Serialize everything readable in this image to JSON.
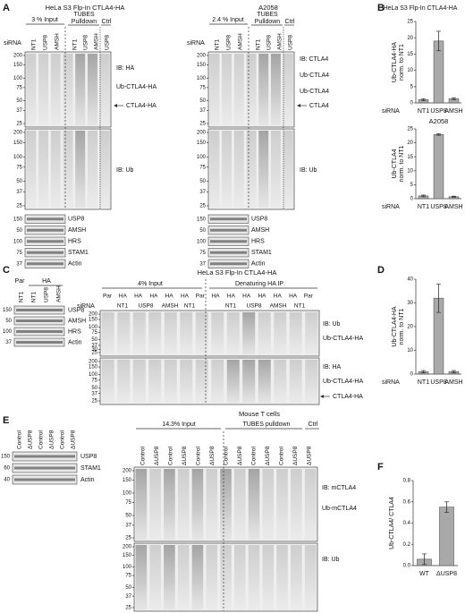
{
  "A": {
    "letter": "A",
    "left": {
      "title": "HeLa S3 Flp-In CTLA4-HA",
      "input": "3 % Input",
      "tubes": "TUBES",
      "pulldown": "Pulldown",
      "ctrl": "Ctrl",
      "sirna": "siRNA",
      "lanes": [
        "NT1",
        "USP8",
        "AMSH",
        "NT1",
        "USP8",
        "AMSH",
        "USP8"
      ],
      "mw_top": [
        200,
        150,
        100,
        75,
        50,
        37,
        25
      ],
      "mw_bottom": [
        200,
        150,
        100,
        75,
        50,
        37,
        25
      ],
      "labels": [
        "IB: HA",
        "Ub-CTLA4-HA",
        "CTLA4-HA",
        "IB: Ub"
      ],
      "small": [
        {
          "mw": 150,
          "name": "USP8"
        },
        {
          "mw": 50,
          "name": "AMSH"
        },
        {
          "mw": 100,
          "name": "HRS"
        },
        {
          "mw": 75,
          "name": "STAM1"
        },
        {
          "mw": 37,
          "name": "Actin"
        }
      ]
    },
    "right": {
      "title": "A2058",
      "input": "2.4 % Input",
      "tubes": "TUBES",
      "pulldown": "Pulldown",
      "ctrl": "Ctrl",
      "sirna": "siRNA",
      "lanes": [
        "NT1",
        "USP8",
        "AMSH",
        "NT1",
        "USP8",
        "AMSH",
        "USP8"
      ],
      "mw_top": [
        200,
        150,
        100,
        75,
        50,
        37,
        25
      ],
      "mw_bottom": [
        200,
        150,
        100,
        75,
        50,
        37,
        25
      ],
      "labels": [
        "IB: CTLA4",
        "Ub-CTLA4",
        "Ub-CTLA4",
        "CTLA4",
        "IB: Ub"
      ],
      "small": [
        {
          "mw": 150,
          "name": "USP8"
        },
        {
          "mw": 50,
          "name": "AMSH"
        },
        {
          "mw": 100,
          "name": "HRS"
        },
        {
          "mw": 75,
          "name": "STAM1"
        },
        {
          "mw": 37,
          "name": "Actin"
        }
      ]
    }
  },
  "B": {
    "letter": "B",
    "title": "HeLa S3 Flp-In CTLA4-HA",
    "charts": [
      {
        "type": "bar",
        "ylabel": [
          "Ub-CTLA4-HA",
          "norm. to NT1"
        ],
        "sirna": "siRNA",
        "categories": [
          "NT1",
          "USP8",
          "AMSH"
        ],
        "values": [
          1,
          19,
          1.3
        ],
        "errors": [
          0.3,
          3,
          0.3
        ],
        "ylim": [
          0,
          25
        ],
        "yticks": [
          0,
          5,
          10,
          15,
          20,
          25
        ],
        "color": "#a9a9a9"
      },
      {
        "type": "bar",
        "title": "A2058",
        "ylabel": [
          "Ub-CTLA4",
          "norm. to NT1"
        ],
        "sirna": "siRNA",
        "categories": [
          "NT1",
          "USP8",
          "AMSH"
        ],
        "values": [
          1,
          23,
          0.7
        ],
        "errors": [
          0.3,
          0.3,
          0.2
        ],
        "ylim": [
          0,
          25
        ],
        "yticks": [
          0,
          5,
          10,
          15,
          20,
          25
        ],
        "color": "#a9a9a9"
      }
    ]
  },
  "C": {
    "letter": "C",
    "left": {
      "par": "Par",
      "ha": "HA",
      "lanes": [
        "NT1",
        "NT1",
        "USP8",
        "AMSH"
      ],
      "small": [
        {
          "mw": 150,
          "name": "USP8"
        },
        {
          "mw": 50,
          "name": "AMSH"
        },
        {
          "mw": 100,
          "name": "HRS"
        },
        {
          "mw": 37,
          "name": "Actin"
        }
      ]
    },
    "main": {
      "title": "HeLa S3 Flp-In CTLA4-HA",
      "input": "4% Input",
      "ip": "Denaturing HA IP",
      "groups": [
        "Par",
        "HA",
        "HA",
        "HA",
        "HA",
        "HA",
        "Par",
        "HA",
        "HA",
        "HA",
        "HA",
        "HA",
        "HA",
        "Par"
      ],
      "sirna": "siRNA",
      "sirna_lanes": [
        "NT1",
        "USP8",
        "AMSH",
        "NT1",
        "NT1",
        "USP8",
        "AMSH",
        "NT1"
      ],
      "mw_top": [
        200,
        150,
        100,
        75,
        50,
        37,
        30,
        25
      ],
      "mw_bottom": [
        200,
        150,
        100,
        75,
        50,
        37,
        25
      ],
      "labels": [
        "IB: Ub",
        "Ub-CTLA4-HA",
        "IB: HA",
        "Ub-CTLA4-HA",
        "CTLA4-HA"
      ]
    }
  },
  "D": {
    "letter": "D",
    "chart": {
      "type": "bar",
      "ylabel": [
        "Ub-CTLA4-HA",
        "norm. to NT1"
      ],
      "sirna": "siRNA",
      "categories": [
        "NT1",
        "USP8",
        "AMSH"
      ],
      "values": [
        1,
        32,
        1
      ],
      "errors": [
        0.5,
        6,
        0.5
      ],
      "ylim": [
        0,
        40
      ],
      "yticks": [
        0,
        10,
        20,
        30,
        40
      ],
      "color": "#a9a9a9"
    }
  },
  "E": {
    "letter": "E",
    "title": "Mouse T cells",
    "left": {
      "lanes": [
        "Control",
        "ΔUSP8",
        "Control",
        "ΔUSP8",
        "Control",
        "ΔUSP8"
      ],
      "small": [
        {
          "mw": 150,
          "name": "USP8"
        },
        {
          "mw": 60,
          "name": "STAM1"
        },
        {
          "mw": 40,
          "name": "Actin"
        }
      ]
    },
    "main": {
      "input": "14.3% Input",
      "pulldown": "TUBES pulldown",
      "ctrl": "Ctrl",
      "lanes": [
        "Control",
        "ΔUSP8",
        "Control",
        "ΔUSP8",
        "Control",
        "ΔUSP8",
        "Control",
        "ΔUSP8",
        "Control",
        "ΔUSP8",
        "Control",
        "ΔUSP8",
        "ΔUSP8"
      ],
      "mw_top": [
        200,
        150,
        100,
        75,
        50,
        37,
        25
      ],
      "mw_bottom": [
        200,
        150,
        100,
        75,
        50,
        37,
        25
      ],
      "labels": [
        "IB: mCTLA4",
        "Ub-mCTLA4",
        "IB: Ub"
      ]
    }
  },
  "F": {
    "letter": "F",
    "chart": {
      "type": "bar",
      "ylabel": [
        "Ub-CTLA4/ CTLA4"
      ],
      "categories": [
        "WT",
        "ΔUSP8"
      ],
      "values": [
        0.06,
        0.55
      ],
      "errors": [
        0.05,
        0.05
      ],
      "ylim": [
        0,
        0.8
      ],
      "yticks": [
        {
          "value": 0,
          "label": "0.0"
        },
        0.2,
        0.4,
        0.6,
        0.8
      ],
      "color": "#a9a9a9"
    }
  }
}
